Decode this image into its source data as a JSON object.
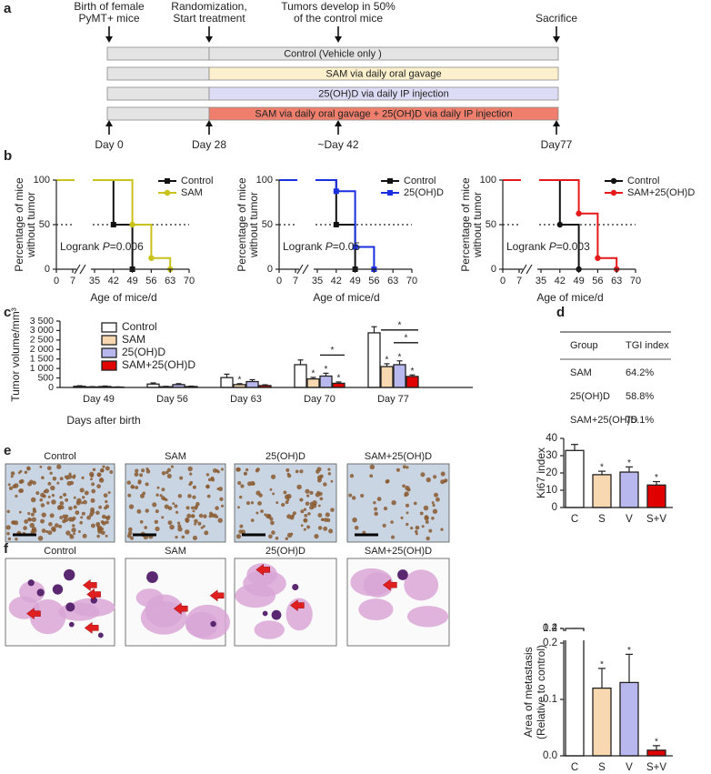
{
  "panels": [
    "a",
    "b",
    "c",
    "d",
    "e",
    "f"
  ],
  "timeline": {
    "events": [
      {
        "label": [
          "Birth of female",
          "PyMT+ mice"
        ],
        "day": "Day 0"
      },
      {
        "label": [
          "Randomization,",
          "Start treatment"
        ],
        "day": "Day 28"
      },
      {
        "label": [
          "Tumors develop in 50%",
          "of the control mice"
        ],
        "day": "~Day 42"
      },
      {
        "label": [
          "Sacrifice"
        ],
        "day": "Day77"
      }
    ],
    "groups": [
      {
        "label": "Control (Vehicle only )",
        "color": "#e4e4e4"
      },
      {
        "label": "SAM via daily oral gavage",
        "color": "#fdf0cc"
      },
      {
        "label": "25(OH)D via daily IP injection",
        "color": "#dcdcf6"
      },
      {
        "label": "SAM via daily oral gavage + 25(OH)D via daily IP injection",
        "color": "#ef7f6c"
      }
    ]
  },
  "chart_data": [
    {
      "type": "step",
      "ylabel": [
        "Percentage of mice",
        "without tumor"
      ],
      "xlabel": "Age of mice/d",
      "annotation": [
        "Logrank ",
        "P",
        "=0.006"
      ],
      "hline": 50,
      "xlim": [
        0,
        70
      ],
      "xbreak": [
        7,
        35
      ],
      "xticks": [
        0,
        7,
        35,
        42,
        49,
        56,
        63,
        70
      ],
      "ylim": [
        0,
        100
      ],
      "yticks": [
        0,
        50,
        100
      ],
      "series": [
        {
          "name": "Control",
          "color": "#111111",
          "marker": "square",
          "x": [
            0,
            42,
            49
          ],
          "values": [
            100,
            50,
            0
          ]
        },
        {
          "name": "SAM",
          "color": "#c8c21a",
          "marker": "circle",
          "x": [
            0,
            49,
            56,
            63
          ],
          "values": [
            100,
            50,
            12.5,
            0
          ]
        }
      ]
    },
    {
      "type": "step",
      "ylabel": [
        "Percentage of mice",
        "without tumor"
      ],
      "xlabel": "Age of mice/d",
      "annotation": [
        "Logrank ",
        "P",
        "=0.05"
      ],
      "hline": 50,
      "xlim": [
        0,
        70
      ],
      "xbreak": [
        7,
        35
      ],
      "xticks": [
        0,
        7,
        35,
        42,
        49,
        56,
        63,
        70
      ],
      "ylim": [
        0,
        100
      ],
      "yticks": [
        0,
        50,
        100
      ],
      "series": [
        {
          "name": "Control",
          "color": "#111111",
          "marker": "square",
          "x": [
            0,
            42,
            49
          ],
          "values": [
            100,
            50,
            0
          ]
        },
        {
          "name": "25(OH)D",
          "color": "#1a2fe0",
          "marker": "square",
          "x": [
            0,
            42,
            49,
            56
          ],
          "values": [
            100,
            87.5,
            25,
            0
          ]
        }
      ]
    },
    {
      "type": "step",
      "ylabel": [
        "Percentage of mice",
        "without tumor"
      ],
      "xlabel": "Age of mice/d",
      "annotation": [
        "Logrank ",
        "P",
        "=0.003"
      ],
      "hline": 50,
      "xlim": [
        0,
        70
      ],
      "xbreak": [
        7,
        35
      ],
      "xticks": [
        0,
        7,
        35,
        42,
        49,
        56,
        63,
        70
      ],
      "ylim": [
        0,
        100
      ],
      "yticks": [
        0,
        50,
        100
      ],
      "series": [
        {
          "name": "Control",
          "color": "#111111",
          "marker": "circle",
          "x": [
            0,
            42,
            49
          ],
          "values": [
            100,
            50,
            0
          ]
        },
        {
          "name": "SAM+25(OH)D",
          "color": "#e41a1a",
          "marker": "circle",
          "x": [
            0,
            49,
            56,
            63
          ],
          "values": [
            100,
            62.5,
            12.5,
            0
          ]
        }
      ]
    },
    {
      "type": "groupbar",
      "ylabel": "Tumor volume/mm³",
      "xlabel": "Days after birth",
      "categories": [
        "Day 49",
        "Day 56",
        "Day 63",
        "Day 70",
        "Day 77"
      ],
      "ylim": [
        0,
        3500
      ],
      "yticks": [
        0,
        500,
        {
          "value": 1000,
          "label": "1 000"
        },
        {
          "value": 1500,
          "label": "1 500"
        },
        {
          "value": 2000,
          "label": "2 000"
        },
        {
          "value": 2500,
          "label": "2 500"
        },
        {
          "value": 3000,
          "label": "3 000"
        },
        {
          "value": 3500,
          "label": "3 500"
        }
      ],
      "series": [
        {
          "name": "Control",
          "color": "#ffffff",
          "values": [
            60,
            180,
            520,
            1200,
            2880
          ],
          "errors": [
            30,
            60,
            180,
            250,
            320
          ],
          "stars": [
            null,
            null,
            null,
            null,
            null
          ]
        },
        {
          "name": "SAM",
          "color": "#f8d8b0",
          "values": [
            30,
            40,
            150,
            450,
            1100
          ],
          "errors": [
            15,
            20,
            50,
            80,
            150
          ],
          "stars": [
            null,
            null,
            "*",
            "*",
            "*"
          ]
        },
        {
          "name": "25(OH)D",
          "color": "#b8b8ee",
          "values": [
            50,
            150,
            310,
            600,
            1200
          ],
          "errors": [
            25,
            50,
            100,
            150,
            200
          ],
          "stars": [
            null,
            null,
            null,
            "*",
            "*"
          ]
        },
        {
          "name": "SAM+25(OH)D",
          "color": "#e00000",
          "values": [
            20,
            50,
            100,
            220,
            580
          ],
          "errors": [
            10,
            20,
            40,
            70,
            80
          ],
          "stars": [
            null,
            null,
            null,
            "*",
            "*"
          ]
        }
      ],
      "brackets": [
        {
          "text": "*",
          "category": 3,
          "from": 2,
          "to": 3
        },
        {
          "text": "*",
          "category": 4,
          "from": 2,
          "to": 3
        },
        {
          "text": "*",
          "category": 4,
          "from": 1,
          "to": 3
        }
      ]
    },
    {
      "type": "bar",
      "ylabel": [
        "Ki67 index"
      ],
      "categories": [
        "C",
        "S",
        "V",
        "S+V"
      ],
      "values": [
        33,
        19,
        20.5,
        13
      ],
      "errors": [
        3.5,
        2,
        3,
        2
      ],
      "stars": [
        null,
        "*",
        "*",
        "*"
      ],
      "colors": [
        "#ffffff",
        "#f8d8b0",
        "#b8b8ee",
        "#e00000"
      ],
      "ylim": [
        0,
        40
      ],
      "yticks": [
        0,
        10,
        20,
        30,
        40
      ]
    },
    {
      "type": "bar",
      "ylabel": [
        "Area of metastasis",
        "(Relative to control)"
      ],
      "categories": [
        "C",
        "S",
        "V",
        "S+V"
      ],
      "values": [
        1.0,
        0.12,
        0.13,
        0.01
      ],
      "errors": [
        0.1,
        0.035,
        0.05,
        0.008
      ],
      "stars": [
        null,
        "*",
        "*",
        "*"
      ],
      "colors": [
        "#ffffff",
        "#f8d8b0",
        "#b8b8ee",
        "#e00000"
      ],
      "ylim": [
        0,
        1.2
      ],
      "ybreak": [
        0.2,
        0.4
      ],
      "yticks": [
        {
          "value": 0,
          "label": "0.0"
        },
        0.1,
        0.2,
        0.4,
        1.2
      ]
    }
  ],
  "table": {
    "header": [
      "Group",
      "TGI index"
    ],
    "rows": [
      [
        "SAM",
        "64.2%"
      ],
      [
        "25(OH)D",
        "58.8%"
      ],
      [
        "SAM+25(OH)D",
        "75.1%"
      ]
    ]
  },
  "micrographs": {
    "ki67": [
      "Control",
      "SAM",
      "25(OH)D",
      "SAM+25(OH)D"
    ],
    "lungs": [
      "Control",
      "SAM",
      "25(OH)D",
      "SAM+25(OH)D"
    ]
  }
}
